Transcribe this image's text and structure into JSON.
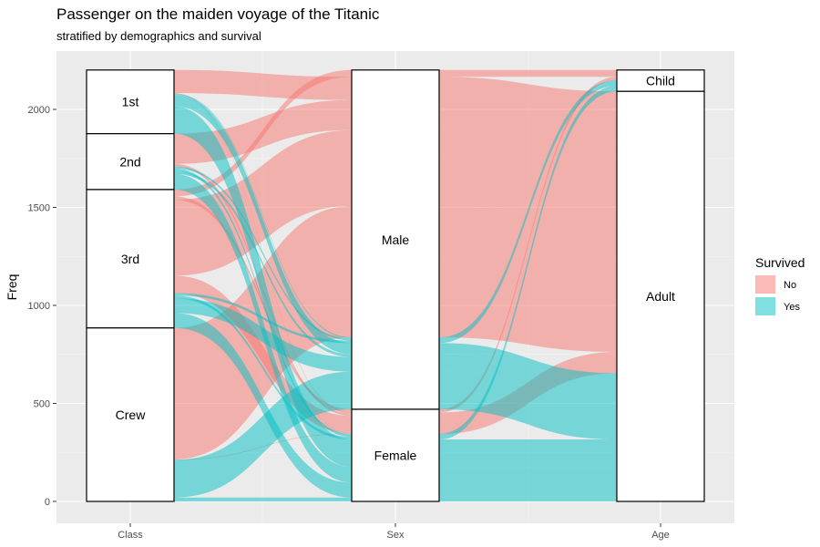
{
  "chart_data": {
    "type": "alluvial",
    "title": "Passenger on the maiden voyage of the Titanic",
    "subtitle": "stratified by demographics and survival",
    "ylabel": "Freq",
    "ylim": [
      0,
      2200
    ],
    "y_ticks": [
      0,
      500,
      1000,
      1500,
      2000
    ],
    "axes": [
      "Class",
      "Sex",
      "Age"
    ],
    "strata": {
      "Class": [
        "1st",
        "2nd",
        "3rd",
        "Crew"
      ],
      "Sex": [
        "Male",
        "Female"
      ],
      "Age": [
        "Child",
        "Adult"
      ]
    },
    "legend": {
      "title": "Survived",
      "placement": "right",
      "items": [
        {
          "label": "No",
          "color": "#F8766D"
        },
        {
          "label": "Yes",
          "color": "#00BFC4"
        }
      ]
    },
    "flows": [
      {
        "Class": "1st",
        "Sex": "Male",
        "Age": "Child",
        "Survived": "No",
        "Freq": 0
      },
      {
        "Class": "2nd",
        "Sex": "Male",
        "Age": "Child",
        "Survived": "No",
        "Freq": 0
      },
      {
        "Class": "3rd",
        "Sex": "Male",
        "Age": "Child",
        "Survived": "No",
        "Freq": 35
      },
      {
        "Class": "Crew",
        "Sex": "Male",
        "Age": "Child",
        "Survived": "No",
        "Freq": 0
      },
      {
        "Class": "1st",
        "Sex": "Female",
        "Age": "Child",
        "Survived": "No",
        "Freq": 0
      },
      {
        "Class": "2nd",
        "Sex": "Female",
        "Age": "Child",
        "Survived": "No",
        "Freq": 0
      },
      {
        "Class": "3rd",
        "Sex": "Female",
        "Age": "Child",
        "Survived": "No",
        "Freq": 17
      },
      {
        "Class": "Crew",
        "Sex": "Female",
        "Age": "Child",
        "Survived": "No",
        "Freq": 0
      },
      {
        "Class": "1st",
        "Sex": "Male",
        "Age": "Adult",
        "Survived": "No",
        "Freq": 118
      },
      {
        "Class": "2nd",
        "Sex": "Male",
        "Age": "Adult",
        "Survived": "No",
        "Freq": 154
      },
      {
        "Class": "3rd",
        "Sex": "Male",
        "Age": "Adult",
        "Survived": "No",
        "Freq": 387
      },
      {
        "Class": "Crew",
        "Sex": "Male",
        "Age": "Adult",
        "Survived": "No",
        "Freq": 670
      },
      {
        "Class": "1st",
        "Sex": "Female",
        "Age": "Adult",
        "Survived": "No",
        "Freq": 4
      },
      {
        "Class": "2nd",
        "Sex": "Female",
        "Age": "Adult",
        "Survived": "No",
        "Freq": 13
      },
      {
        "Class": "3rd",
        "Sex": "Female",
        "Age": "Adult",
        "Survived": "No",
        "Freq": 89
      },
      {
        "Class": "Crew",
        "Sex": "Female",
        "Age": "Adult",
        "Survived": "No",
        "Freq": 3
      },
      {
        "Class": "1st",
        "Sex": "Male",
        "Age": "Child",
        "Survived": "Yes",
        "Freq": 5
      },
      {
        "Class": "2nd",
        "Sex": "Male",
        "Age": "Child",
        "Survived": "Yes",
        "Freq": 11
      },
      {
        "Class": "3rd",
        "Sex": "Male",
        "Age": "Child",
        "Survived": "Yes",
        "Freq": 13
      },
      {
        "Class": "Crew",
        "Sex": "Male",
        "Age": "Child",
        "Survived": "Yes",
        "Freq": 0
      },
      {
        "Class": "1st",
        "Sex": "Female",
        "Age": "Child",
        "Survived": "Yes",
        "Freq": 1
      },
      {
        "Class": "2nd",
        "Sex": "Female",
        "Age": "Child",
        "Survived": "Yes",
        "Freq": 13
      },
      {
        "Class": "3rd",
        "Sex": "Female",
        "Age": "Child",
        "Survived": "Yes",
        "Freq": 14
      },
      {
        "Class": "Crew",
        "Sex": "Female",
        "Age": "Child",
        "Survived": "Yes",
        "Freq": 0
      },
      {
        "Class": "1st",
        "Sex": "Male",
        "Age": "Adult",
        "Survived": "Yes",
        "Freq": 57
      },
      {
        "Class": "2nd",
        "Sex": "Male",
        "Age": "Adult",
        "Survived": "Yes",
        "Freq": 14
      },
      {
        "Class": "3rd",
        "Sex": "Male",
        "Age": "Adult",
        "Survived": "Yes",
        "Freq": 75
      },
      {
        "Class": "Crew",
        "Sex": "Male",
        "Age": "Adult",
        "Survived": "Yes",
        "Freq": 192
      },
      {
        "Class": "1st",
        "Sex": "Female",
        "Age": "Adult",
        "Survived": "Yes",
        "Freq": 140
      },
      {
        "Class": "2nd",
        "Sex": "Female",
        "Age": "Adult",
        "Survived": "Yes",
        "Freq": 80
      },
      {
        "Class": "3rd",
        "Sex": "Female",
        "Age": "Adult",
        "Survived": "Yes",
        "Freq": 76
      },
      {
        "Class": "Crew",
        "Sex": "Female",
        "Age": "Adult",
        "Survived": "Yes",
        "Freq": 20
      }
    ],
    "grid": true
  }
}
